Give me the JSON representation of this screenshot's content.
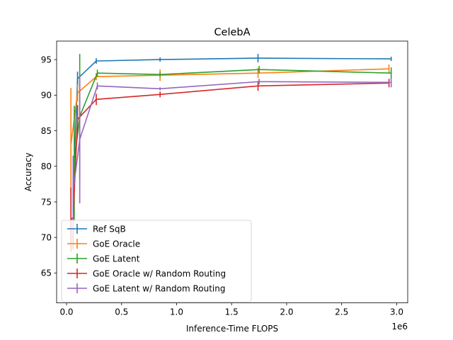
{
  "chart_data": {
    "type": "line",
    "title": "CelebA",
    "xlabel": "Inference-Time FLOPS",
    "ylabel": "Accuracy",
    "x_offset_label": "1e6",
    "x_scale": 1000000,
    "xlim": [
      -90000,
      3100000
    ],
    "ylim": [
      60.8,
      97.6
    ],
    "x_ticks": [
      0,
      500000,
      1000000,
      1500000,
      2000000,
      2500000,
      3000000
    ],
    "x_tick_labels": [
      "0.0",
      "0.5",
      "1.0",
      "1.5",
      "2.0",
      "2.5",
      "3.0"
    ],
    "y_ticks": [
      65,
      70,
      75,
      80,
      85,
      90,
      95
    ],
    "y_tick_labels": [
      "65",
      "70",
      "75",
      "80",
      "85",
      "90",
      "95"
    ],
    "grid": false,
    "legend_position": "lower-left",
    "error_bars": true,
    "series": [
      {
        "name": "Ref SqB",
        "color": "#1f77b4",
        "points": [
          {
            "x": 60000,
            "y": 76.0,
            "err": 1.4
          },
          {
            "x": 100000,
            "y": 92.3,
            "err": 1.0
          },
          {
            "x": 270000,
            "y": 94.8,
            "err": 0.4
          },
          {
            "x": 850000,
            "y": 95.0,
            "err": 0.3
          },
          {
            "x": 1740000,
            "y": 95.2,
            "err": 0.6
          },
          {
            "x": 2950000,
            "y": 95.1,
            "err": 0.3
          }
        ]
      },
      {
        "name": "GoE Oracle",
        "color": "#ff7f0e",
        "points": [
          {
            "x": 40000,
            "y": 83.0,
            "err": 8.0
          },
          {
            "x": 100000,
            "y": 90.3,
            "err": 1.2
          },
          {
            "x": 270000,
            "y": 92.6,
            "err": 0.5
          },
          {
            "x": 850000,
            "y": 92.8,
            "err": 0.8
          },
          {
            "x": 1740000,
            "y": 93.1,
            "err": 0.7
          },
          {
            "x": 2930000,
            "y": 93.7,
            "err": 0.6
          }
        ]
      },
      {
        "name": "GoE Latent",
        "color": "#2ca02c",
        "points": [
          {
            "x": 70000,
            "y": 80.5,
            "err": 8.0
          },
          {
            "x": 120000,
            "y": 87.0,
            "err": 8.8
          },
          {
            "x": 280000,
            "y": 93.1,
            "err": 0.5
          },
          {
            "x": 850000,
            "y": 92.9,
            "err": 0.3
          },
          {
            "x": 1750000,
            "y": 93.6,
            "err": 0.5
          },
          {
            "x": 2950000,
            "y": 93.1,
            "err": 0.8
          }
        ]
      },
      {
        "name": "GoE Oracle w/ Random Routing",
        "color": "#d62728",
        "points": [
          {
            "x": 40000,
            "y": 72.5,
            "err": 4.5
          },
          {
            "x": 60000,
            "y": 72.8,
            "err": 4.5
          },
          {
            "x": 100000,
            "y": 86.6,
            "err": 2.0
          },
          {
            "x": 270000,
            "y": 89.4,
            "err": 0.8
          },
          {
            "x": 850000,
            "y": 90.1,
            "err": 0.4
          },
          {
            "x": 1740000,
            "y": 91.3,
            "err": 0.7
          },
          {
            "x": 2930000,
            "y": 91.7,
            "err": 0.6
          }
        ]
      },
      {
        "name": "GoE Latent w/ Random Routing",
        "color": "#9467bd",
        "points": [
          {
            "x": 60000,
            "y": 76.5,
            "err": 5.0
          },
          {
            "x": 120000,
            "y": 83.8,
            "err": 9.0
          },
          {
            "x": 280000,
            "y": 91.3,
            "err": 0.5
          },
          {
            "x": 850000,
            "y": 90.9,
            "err": 0.2
          },
          {
            "x": 1750000,
            "y": 91.9,
            "err": 0.4
          },
          {
            "x": 2950000,
            "y": 91.8,
            "err": 0.7
          }
        ]
      }
    ]
  }
}
